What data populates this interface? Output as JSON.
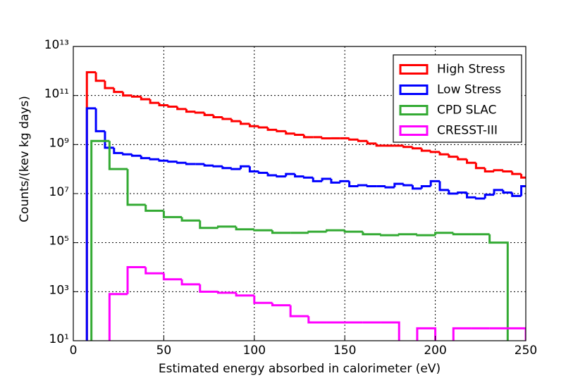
{
  "chart_data": {
    "type": "step_histogram",
    "xlabel": "Estimated energy absorbed in calorimeter (eV)",
    "ylabel": "Counts/(kev kg days)",
    "xlim": [
      0,
      250
    ],
    "xticks": [
      0,
      50,
      100,
      150,
      200,
      250
    ],
    "ylim": [
      10,
      10000000000000.0
    ],
    "log_y": true,
    "grid": true,
    "legend": "upper right",
    "yticks": [
      {
        "value": 10,
        "label": "10¹"
      },
      {
        "value": 1000,
        "label": "10³"
      },
      {
        "value": 100000,
        "label": "10⁵"
      },
      {
        "value": 10000000,
        "label": "10⁷"
      },
      {
        "value": 1000000000,
        "label": "10⁹"
      },
      {
        "value": 100000000000,
        "label": "10¹¹"
      },
      {
        "value": 10000000000000,
        "label": "10¹³"
      }
    ],
    "series": [
      {
        "name": "High Stress",
        "color": "#ff0000",
        "bins": [
          7.5,
          12.5,
          17.5,
          22.5,
          27.5,
          32.5,
          37.5,
          42.5,
          47.5,
          52.5,
          57.5,
          62.5,
          67.5,
          72.5,
          77.5,
          82.5,
          87.5,
          92.5,
          97.5,
          102.5,
          107.5,
          112.5,
          117.5,
          122.5,
          127.5,
          132.5,
          137.5,
          142.5,
          147.5,
          152.5,
          157.5,
          162.5,
          167.5,
          172.5,
          177.5,
          182.5,
          187.5,
          192.5,
          197.5,
          202.5,
          207.5,
          212.5,
          217.5,
          222.5,
          227.5,
          232.5,
          237.5,
          242.5,
          247.5,
          252.5
        ],
        "values": [
          890000000000.0,
          400000000000.0,
          200000000000.0,
          140000000000.0,
          100000000000.0,
          90000000000.0,
          70000000000.0,
          50000000000.0,
          40000000000.0,
          35000000000.0,
          28000000000.0,
          22000000000.0,
          20000000000.0,
          16000000000.0,
          13000000000.0,
          11000000000.0,
          9000000000.0,
          7000000000.0,
          5600000000.0,
          5000000000.0,
          4000000000.0,
          3500000000.0,
          2800000000.0,
          2500000000.0,
          2000000000.0,
          2000000000.0,
          1800000000.0,
          1800000000.0,
          1800000000.0,
          1600000000.0,
          1400000000.0,
          1100000000.0,
          900000000.0,
          900000000.0,
          900000000.0,
          800000000.0,
          700000000.0,
          560000000.0,
          500000000.0,
          400000000.0,
          320000000.0,
          250000000.0,
          180000000.0,
          110000000.0,
          80000000.0,
          90000000.0,
          80000000.0,
          63000000.0,
          45000000.0
        ]
      },
      {
        "name": "Low Stress",
        "color": "#0000ff",
        "bins": [
          7.5,
          12.5,
          17.5,
          22.5,
          27.5,
          32.5,
          37.5,
          42.5,
          47.5,
          52.5,
          57.5,
          62.5,
          67.5,
          72.5,
          77.5,
          82.5,
          87.5,
          92.5,
          97.5,
          102.5,
          107.5,
          112.5,
          117.5,
          122.5,
          127.5,
          132.5,
          137.5,
          142.5,
          147.5,
          152.5,
          157.5,
          162.5,
          167.5,
          172.5,
          177.5,
          182.5,
          187.5,
          192.5,
          197.5,
          202.5,
          207.5,
          212.5,
          217.5,
          222.5,
          227.5,
          232.5,
          237.5,
          242.5,
          247.5,
          252.5
        ],
        "values": [
          30000000000.0,
          3500000000.0,
          740000000.0,
          450000000.0,
          400000000.0,
          350000000.0,
          280000000.0,
          250000000.0,
          220000000.0,
          200000000.0,
          180000000.0,
          160000000.0,
          160000000.0,
          140000000.0,
          130000000.0,
          110000000.0,
          100000000.0,
          130000000.0,
          80000000.0,
          70000000.0,
          56000000.0,
          50000000.0,
          63000000.0,
          50000000.0,
          45000000.0,
          32000000.0,
          40000000.0,
          28000000.0,
          32000000.0,
          20000000.0,
          22000000.0,
          20000000.0,
          20000000.0,
          18000000.0,
          25000000.0,
          22000000.0,
          16000000.0,
          20000000.0,
          32000000.0,
          14000000.0,
          10000000.0,
          11000000.0,
          7000000.0,
          6300000.0,
          9000000.0,
          14000000.0,
          11000000.0,
          8000000.0,
          20000000.0
        ]
      },
      {
        "name": "CPD SLAC",
        "color": "#33aa33",
        "bins": [
          10,
          20,
          30,
          40,
          50,
          60,
          70,
          80,
          90,
          100,
          110,
          120,
          130,
          140,
          150,
          160,
          170,
          180,
          190,
          200,
          210,
          220,
          230,
          240
        ],
        "values": [
          1400000000.0,
          100000000.0,
          3500000.0,
          2000000.0,
          1100000.0,
          800000.0,
          400000.0,
          450000.0,
          350000.0,
          320000.0,
          250000.0,
          250000.0,
          280000.0,
          320000.0,
          280000.0,
          220000.0,
          200000.0,
          220000.0,
          200000.0,
          250000.0,
          220000.0,
          220000.0,
          100000.0
        ]
      },
      {
        "name": "CRESST-III",
        "color": "#ff00ff",
        "bins": [
          20,
          30,
          40,
          50,
          60,
          70,
          80,
          90,
          100,
          110,
          120,
          130,
          140,
          150,
          160,
          170,
          180,
          190,
          200,
          210,
          220,
          230,
          240,
          250
        ],
        "values": [
          800,
          10000,
          5600,
          3200,
          2000,
          1000,
          900,
          700,
          350,
          280,
          100,
          56,
          56,
          56,
          56,
          56,
          null,
          32,
          null,
          32,
          32,
          32,
          32
        ]
      }
    ]
  }
}
